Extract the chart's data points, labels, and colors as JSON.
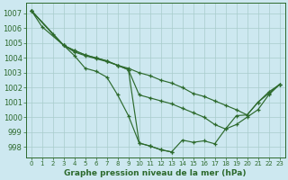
{
  "title": "Graphe pression niveau de la mer (hPa)",
  "bg_color": "#cde8f0",
  "grid_color": "#a8cccc",
  "line_color": "#2d6a2d",
  "xlim": [
    -0.5,
    23.5
  ],
  "ylim": [
    997.3,
    1007.7
  ],
  "yticks": [
    998,
    999,
    1000,
    1001,
    1002,
    1003,
    1004,
    1005,
    1006,
    1007
  ],
  "xticks": [
    0,
    1,
    2,
    3,
    4,
    5,
    6,
    7,
    8,
    9,
    10,
    11,
    12,
    13,
    14,
    15,
    16,
    17,
    18,
    19,
    20,
    21,
    22,
    23
  ],
  "line1_x": [
    0,
    1,
    3,
    4,
    5,
    6,
    7,
    8,
    9,
    10,
    11,
    12,
    13
  ],
  "line1_y": [
    1007.2,
    1006.1,
    1004.85,
    1004.15,
    1003.3,
    1003.1,
    1002.7,
    1001.5,
    1000.1,
    998.25,
    998.05,
    997.8,
    997.65
  ],
  "line2_x": [
    0,
    2,
    3,
    4,
    5,
    6,
    7,
    8,
    9,
    10,
    11,
    12,
    13,
    14,
    15,
    16,
    17,
    18,
    19,
    20,
    21,
    22,
    23
  ],
  "line2_y": [
    1007.2,
    1005.6,
    1004.85,
    1004.4,
    1004.15,
    1003.95,
    1003.75,
    1003.5,
    1003.3,
    1003.0,
    1002.8,
    1002.5,
    1002.3,
    1002.0,
    1001.6,
    1001.4,
    1001.1,
    1000.8,
    1000.5,
    1000.15,
    1001.0,
    1001.6,
    1002.2
  ],
  "line3_x": [
    0,
    3,
    4,
    5,
    6,
    7,
    8,
    9,
    10,
    11,
    12,
    13,
    14,
    15,
    16,
    17,
    18,
    19,
    20,
    21,
    22,
    23
  ],
  "line3_y": [
    1007.2,
    1004.85,
    1004.5,
    1004.2,
    1004.0,
    1003.8,
    1003.5,
    1003.2,
    1001.5,
    1001.3,
    1001.1,
    1000.9,
    1000.6,
    1000.3,
    1000.0,
    999.5,
    999.2,
    999.5,
    1000.0,
    1000.5,
    1001.5,
    1002.2
  ],
  "line4_x": [
    0,
    3,
    4,
    5,
    6,
    7,
    8,
    9,
    10,
    11,
    12,
    13,
    14,
    15,
    16,
    17,
    18,
    19,
    20,
    21,
    22,
    23
  ],
  "line4_y": [
    1007.2,
    1004.85,
    1004.5,
    1004.2,
    1004.0,
    1003.8,
    1003.5,
    1003.2,
    998.25,
    998.05,
    997.8,
    997.65,
    998.45,
    998.3,
    998.4,
    998.2,
    999.2,
    1000.1,
    1000.15,
    1001.0,
    1001.7,
    1002.2
  ]
}
